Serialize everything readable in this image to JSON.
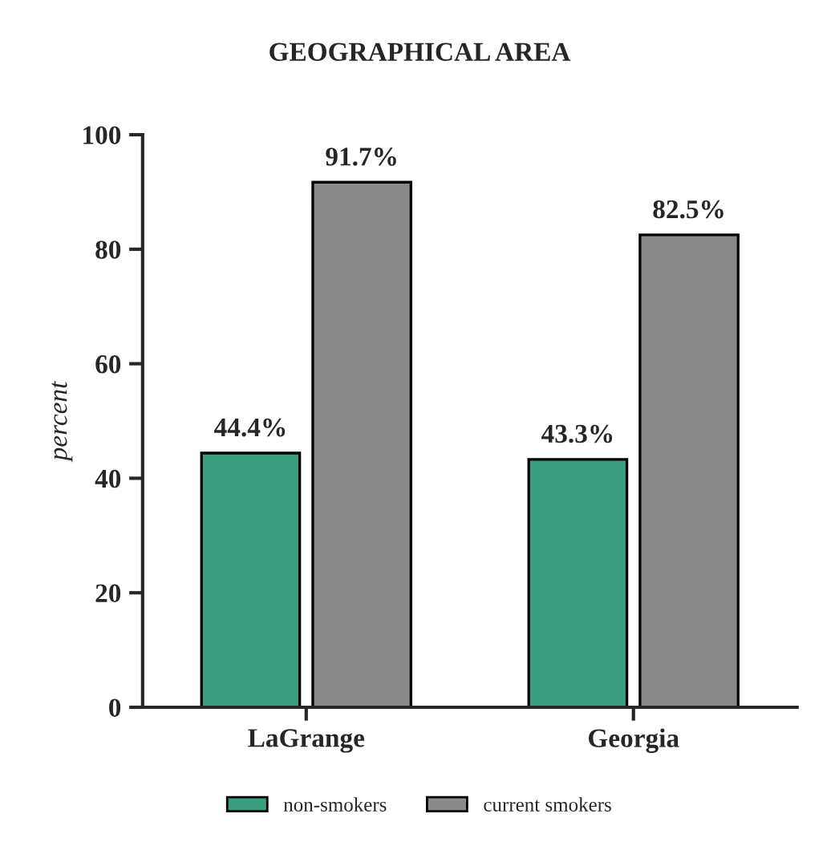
{
  "chart_data": {
    "type": "bar",
    "title": "GEOGRAPHICAL AREA",
    "ylabel": "percent",
    "categories": [
      "LaGrange",
      "Georgia"
    ],
    "series": [
      {
        "name": "non-smokers",
        "color": "#3a9e80",
        "values": [
          44.4,
          43.3
        ],
        "value_labels": [
          "44.4%",
          "43.3%"
        ]
      },
      {
        "name": "current smokers",
        "color": "#8a8a8a",
        "values": [
          91.7,
          82.5
        ],
        "value_labels": [
          "91.7%",
          "82.5%"
        ]
      }
    ],
    "ylim": [
      0,
      100
    ],
    "yticks": [
      0,
      20,
      40,
      60,
      80,
      100
    ],
    "grid": false,
    "legend": "bottom"
  }
}
